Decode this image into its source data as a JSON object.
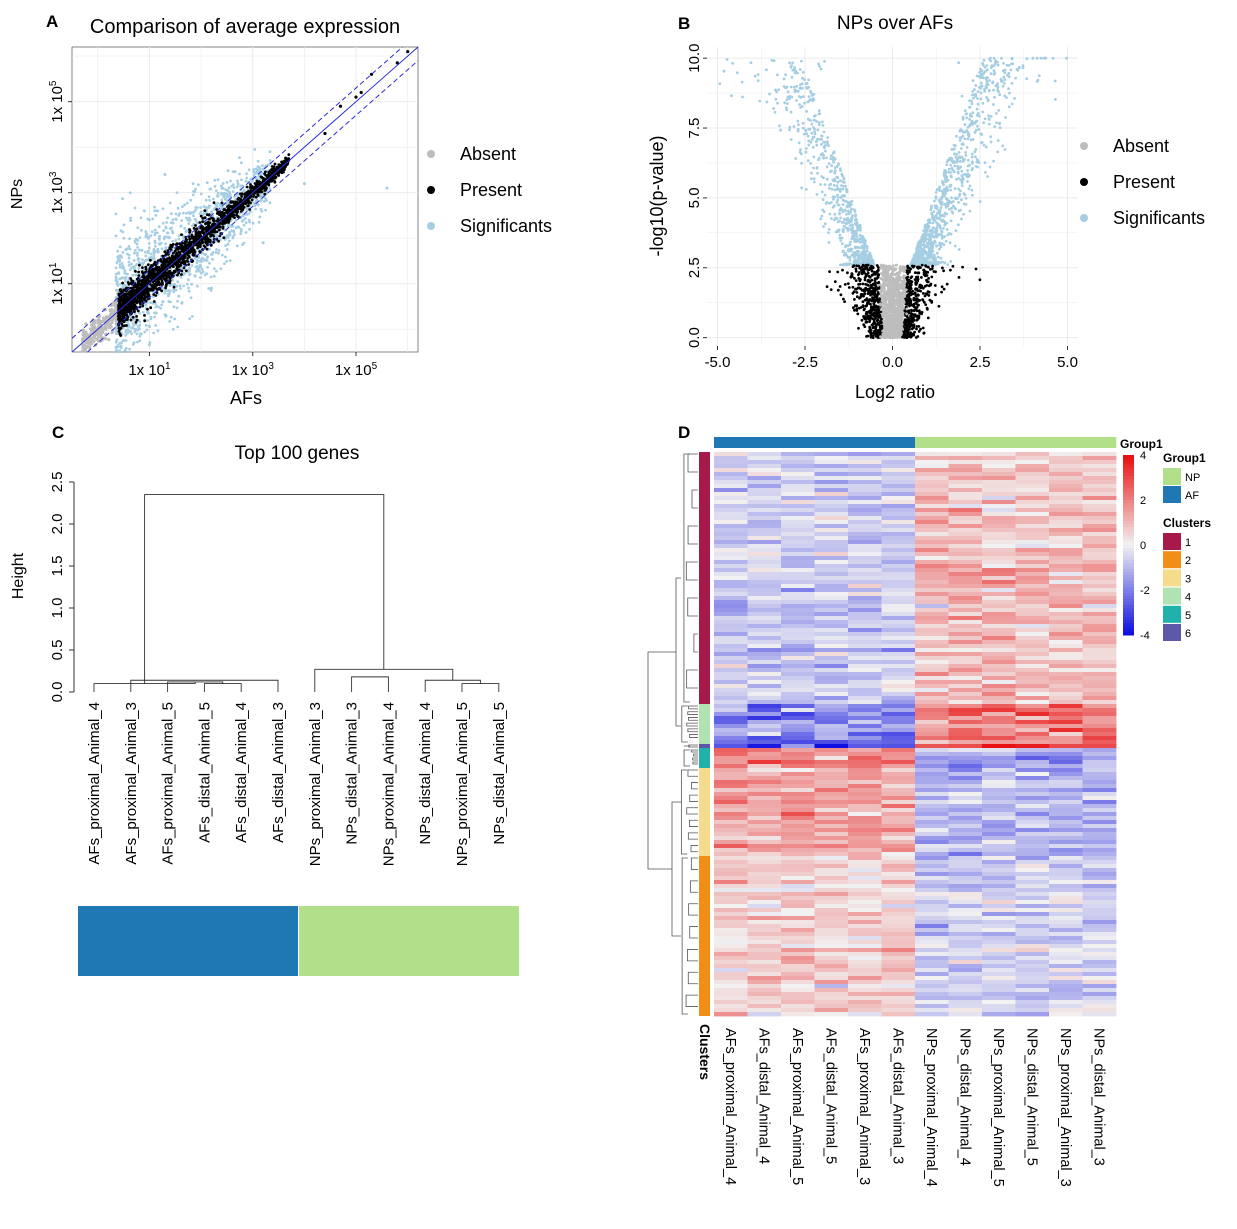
{
  "colors": {
    "absent": "#bdbdbd",
    "present": "#000000",
    "significant": "#a6cee3",
    "np": "#b2df8a",
    "af": "#1f78b4",
    "line": "#2b2bd6",
    "grid": "#ebebeb",
    "cluster_colors": [
      "#a6194a",
      "#f28e16",
      "#f5dc8c",
      "#b0e3b1",
      "#20b2aa",
      "#5e58a8"
    ]
  },
  "chart_data": [
    {
      "panel": "A",
      "type": "scatter",
      "title": "Comparison of average expression",
      "xlabel": "AFs",
      "ylabel": "NPs",
      "scale": "log10",
      "xlim": [
        -0.5,
        6.2
      ],
      "ylim": [
        -0.5,
        6.2
      ],
      "x_ticks": [
        {
          "base": "1x 10",
          "exp": "1"
        },
        {
          "base": "1x 10",
          "exp": "3"
        },
        {
          "base": "1x 10",
          "exp": "5"
        }
      ],
      "y_ticks": [
        {
          "base": "1x 10",
          "exp": "1"
        },
        {
          "base": "1x 10",
          "exp": "3"
        },
        {
          "base": "1x 10",
          "exp": "5"
        }
      ],
      "legend": [
        {
          "label": "Absent",
          "color": "#bdbdbd"
        },
        {
          "label": "Present",
          "color": "#000000"
        },
        {
          "label": "Significants",
          "color": "#a6cee3"
        }
      ],
      "reference_lines": {
        "identity": "y = x",
        "fold_band_log10": 0.3
      }
    },
    {
      "panel": "B",
      "type": "scatter",
      "title": "NPs over AFs",
      "xlabel": "Log2 ratio",
      "ylabel": "-log10(p-value)",
      "xlim": [
        -5.3,
        5.3
      ],
      "ylim": [
        -0.3,
        10.4
      ],
      "x_ticks": [
        "-5.0",
        "-2.5",
        "0.0",
        "2.5",
        "5.0"
      ],
      "y_ticks": [
        "0.0",
        "2.5",
        "5.0",
        "7.5",
        "10.0"
      ],
      "legend": [
        {
          "label": "Absent",
          "color": "#bdbdbd"
        },
        {
          "label": "Present",
          "color": "#000000"
        },
        {
          "label": "Significants",
          "color": "#a6cee3"
        }
      ]
    },
    {
      "panel": "C",
      "type": "dendrogram",
      "title": "Top 100 genes",
      "ylabel": "Height",
      "ylim": [
        0,
        2.5
      ],
      "y_ticks": [
        "0.0",
        "0.5",
        "1.0",
        "1.5",
        "2.0",
        "2.5"
      ],
      "leaves": [
        "AFs_proximal_Animal_4",
        "AFs_proximal_Animal_3",
        "AFs_proximal_Animal_5",
        "AFs_distal_Animal_5",
        "AFs_distal_Animal_4",
        "AFs_distal_Animal_3",
        "NPs_proximal_Animal_3",
        "NPs_distal_Animal_3",
        "NPs_proximal_Animal_4",
        "NPs_distal_Animal_4",
        "NPs_proximal_Animal_5",
        "NPs_distal_Animal_5"
      ],
      "merges": [
        {
          "a": 3,
          "b": 4,
          "height": 0.1
        },
        {
          "a": "AF_m1",
          "b": 2,
          "height": 0.12
        },
        {
          "a": 1,
          "b": 5,
          "height": 0.14
        },
        {
          "a": 0,
          "b": "AF_m2",
          "height": 0.1
        },
        {
          "a": 7,
          "b": 8,
          "height": 0.18
        },
        {
          "a": 10,
          "b": 11,
          "height": 0.1
        },
        {
          "a": 9,
          "b": "NP_m2",
          "height": 0.14
        },
        {
          "a": 6,
          "b": "NP_m3",
          "height": 0.27
        },
        {
          "a": "AF_root",
          "b": "NP_root",
          "height": 2.35
        }
      ],
      "group_bar": [
        {
          "group": "AF",
          "color": "#1f78b4",
          "count": 6
        },
        {
          "group": "NP",
          "color": "#b2df8a",
          "count": 6
        }
      ]
    },
    {
      "panel": "D",
      "type": "heatmap",
      "columns": [
        "AFs_proximal_Animal_4",
        "AFs_distal_Animal_4",
        "AFs_proximal_Animal_5",
        "AFs_distal_Animal_5",
        "AFs_proximal_Animal_3",
        "AFs_distal_Animal_3",
        "NPs_proximal_Animal_4",
        "NPs_distal_Animal_4",
        "NPs_proximal_Animal_5",
        "NPs_distal_Animal_5",
        "NPs_proximal_Animal_3",
        "NPs_distal_Animal_3"
      ],
      "column_groups": [
        "AF",
        "AF",
        "AF",
        "AF",
        "AF",
        "AF",
        "NP",
        "NP",
        "NP",
        "NP",
        "NP",
        "NP"
      ],
      "color_scale": {
        "min": -4,
        "max": 4,
        "ticks": [
          "4",
          "2",
          "0",
          "-2",
          "-4"
        ],
        "low": "#1010e0",
        "mid": "#f2f2f2",
        "high": "#e81010"
      },
      "clusters": [
        {
          "id": "1",
          "color": "#a6194a",
          "fraction": 0.445,
          "af_mean": -0.8,
          "np_mean": 1.1
        },
        {
          "id": "4",
          "color": "#b0e3b1",
          "fraction": 0.072,
          "af_mean": -2.3,
          "np_mean": 2.5
        },
        {
          "id": "6",
          "color": "#5e58a8",
          "fraction": 0.008,
          "af_mean": -3.5,
          "np_mean": 3.5
        },
        {
          "id": "5",
          "color": "#20b2aa",
          "fraction": 0.037,
          "af_mean": 2.3,
          "np_mean": -1.6
        },
        {
          "id": "3",
          "color": "#f5dc8c",
          "fraction": 0.155,
          "af_mean": 1.6,
          "np_mean": -1.3
        },
        {
          "id": "2",
          "color": "#f28e16",
          "fraction": 0.283,
          "af_mean": 0.7,
          "np_mean": -0.8
        }
      ],
      "legend_group_title": "Group1",
      "legend_group_entries": [
        {
          "label": "NP",
          "color": "#b2df8a"
        },
        {
          "label": "AF",
          "color": "#1f78b4"
        }
      ],
      "legend_cluster_title": "Clusters",
      "legend_cluster_entries": [
        {
          "label": "1",
          "color": "#a6194a"
        },
        {
          "label": "2",
          "color": "#f28e16"
        },
        {
          "label": "3",
          "color": "#f5dc8c"
        },
        {
          "label": "4",
          "color": "#b0e3b1"
        },
        {
          "label": "5",
          "color": "#20b2aa"
        },
        {
          "label": "6",
          "color": "#5e58a8"
        }
      ],
      "top_annotation_label": "Group1",
      "row_annotation_label": "Clusters"
    }
  ],
  "panel_letters": {
    "a": "A",
    "b": "B",
    "c": "C",
    "d": "D"
  }
}
